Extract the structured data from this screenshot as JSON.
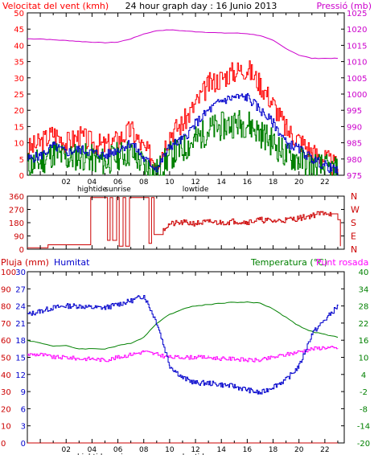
{
  "title": "24 hour graph day : 16 Junio 2013",
  "colors": {
    "background": "#ffffff",
    "frame": "#000000",
    "gust": "#ff0000",
    "wind_avg": "#0000cc",
    "wind_speed": "#008000",
    "pressure": "#cc00cc",
    "direction": "#cc0000",
    "rain": "#cc0000",
    "humidity": "#0000cc",
    "temperature": "#008000",
    "dew_point": "#ff00ff",
    "grid": "#bbbbbb"
  },
  "time_axis": {
    "hour_labels": [
      "02",
      "04",
      "06",
      "08",
      "10",
      "12",
      "14",
      "16",
      "18",
      "20",
      "22"
    ],
    "event_labels": [
      {
        "hour": 4,
        "text": "hightide"
      },
      {
        "hour": 6,
        "text": "sunrise"
      },
      {
        "hour": 12,
        "text": "lowtide"
      }
    ]
  },
  "chart_data": [
    {
      "type": "line",
      "name": "wind_pressure",
      "title": "Velocitat del vent (kmh)",
      "right_title": "Pressió (mb)",
      "ylim": [
        0,
        50
      ],
      "y_ticks": [
        "0",
        "5",
        "10",
        "15",
        "20",
        "25",
        "30",
        "35",
        "40",
        "45",
        "50"
      ],
      "y2lim": [
        975,
        1025
      ],
      "y2_ticks": [
        "975",
        "980",
        "985",
        "990",
        "995",
        "1000",
        "1005",
        "1010",
        "1015",
        "1020",
        "1025"
      ],
      "xlim": [
        -1,
        23.5
      ],
      "x_hours": [
        -1,
        0,
        1,
        2,
        3,
        4,
        5,
        6,
        7,
        8,
        9,
        10,
        11,
        12,
        13,
        14,
        15,
        16,
        17,
        18,
        19,
        20,
        21,
        22,
        23
      ],
      "series": [
        {
          "key": "gust",
          "values": [
            8,
            10,
            13,
            10,
            12,
            10,
            9,
            11,
            14,
            8,
            4,
            13,
            16,
            22,
            28,
            30,
            32,
            33,
            28,
            22,
            14,
            11,
            7,
            5,
            2
          ]
        },
        {
          "key": "wind_avg",
          "values": [
            5,
            6,
            9,
            7,
            8,
            7,
            6,
            8,
            10,
            5,
            2,
            9,
            11,
            16,
            20,
            23,
            24,
            24,
            20,
            16,
            10,
            8,
            5,
            3,
            1
          ]
        },
        {
          "key": "wind_speed",
          "values": [
            3,
            4,
            7,
            5,
            6,
            5,
            4,
            6,
            7,
            3,
            1,
            6,
            8,
            11,
            14,
            15,
            16,
            16,
            13,
            10,
            6,
            5,
            3,
            2,
            1
          ]
        },
        {
          "key": "pressure",
          "axis": "right",
          "values": [
            1017,
            1017,
            1016.7,
            1016.5,
            1016.2,
            1016,
            1015.8,
            1016,
            1017,
            1018.5,
            1019.5,
            1019.8,
            1019.5,
            1019.2,
            1019,
            1018.8,
            1018.8,
            1018.6,
            1018,
            1016.5,
            1014,
            1012,
            1011,
            1011,
            1011
          ]
        }
      ]
    },
    {
      "type": "line",
      "name": "wind_direction",
      "ylim": [
        0,
        360
      ],
      "y_ticks": [
        "0",
        "90",
        "180",
        "270",
        "360"
      ],
      "right_labels": [
        "N",
        "W",
        "S",
        "E",
        "N"
      ],
      "xlim": [
        -1,
        23.5
      ],
      "series": [
        {
          "key": "direction",
          "points": [
            [
              -1,
              10
            ],
            [
              0.5,
              10
            ],
            [
              0.6,
              30
            ],
            [
              3.8,
              30
            ],
            [
              3.9,
              350
            ],
            [
              5.1,
              350
            ],
            [
              5.2,
              60
            ],
            [
              5.4,
              350
            ],
            [
              5.6,
              60
            ],
            [
              5.9,
              350
            ],
            [
              6.1,
              20
            ],
            [
              6.4,
              350
            ],
            [
              6.6,
              20
            ],
            [
              6.9,
              350
            ],
            [
              8.3,
              350
            ],
            [
              8.4,
              40
            ],
            [
              8.6,
              350
            ],
            [
              8.8,
              100
            ],
            [
              9.5,
              140
            ],
            [
              10,
              170
            ],
            [
              11,
              180
            ],
            [
              12,
              175
            ],
            [
              13,
              185
            ],
            [
              14,
              180
            ],
            [
              15,
              190
            ],
            [
              16,
              185
            ],
            [
              17,
              200
            ],
            [
              18,
              190
            ],
            [
              19,
              200
            ],
            [
              20,
              210
            ],
            [
              21,
              230
            ],
            [
              22,
              250
            ],
            [
              22.5,
              240
            ],
            [
              23,
              200
            ],
            [
              23.2,
              20
            ]
          ]
        }
      ]
    },
    {
      "type": "line",
      "name": "rain_humidity_temperature",
      "title_left": "Pluja (mm)",
      "title_mid": "Humitat",
      "title_right": "Temperatura (°C)",
      "title_right2": "Punt rosada",
      "ylim": [
        0,
        100
      ],
      "y_ticks_rain": [
        "0",
        "3",
        "6",
        "9",
        "12",
        "15",
        "18",
        "21",
        "24",
        "27",
        "30"
      ],
      "y_ticks_hum": [
        "0",
        "10",
        "20",
        "30",
        "40",
        "50",
        "60",
        "70",
        "80",
        "90",
        "100"
      ],
      "y2lim": [
        -20,
        40
      ],
      "y2_ticks": [
        "-20",
        "-14",
        "-8",
        "-2",
        "4",
        "10",
        "16",
        "22",
        "28",
        "34",
        "40"
      ],
      "xlim": [
        -1,
        23.5
      ],
      "x_hours": [
        -1,
        0,
        1,
        2,
        3,
        4,
        5,
        6,
        7,
        8,
        9,
        10,
        11,
        12,
        13,
        14,
        15,
        16,
        17,
        18,
        19,
        20,
        21,
        22,
        23
      ],
      "series": [
        {
          "key": "rain",
          "values": [
            0,
            0,
            0,
            0,
            0,
            0,
            0,
            0,
            0,
            0,
            0,
            0,
            0,
            0,
            0,
            0,
            0,
            0,
            0,
            0,
            0,
            0,
            0,
            0,
            0
          ]
        },
        {
          "key": "humidity",
          "values": [
            75,
            77,
            79,
            80,
            80,
            79,
            79,
            81,
            83,
            86,
            70,
            45,
            38,
            35,
            35,
            34,
            33,
            31,
            29,
            33,
            37,
            45,
            64,
            72,
            80
          ]
        },
        {
          "key": "temperature",
          "axis": "right",
          "values": [
            16,
            15,
            14,
            14,
            13,
            13,
            13,
            14,
            15,
            17,
            22,
            25,
            27,
            28,
            28.5,
            29,
            29.3,
            29.3,
            29,
            27,
            24,
            21,
            19,
            18,
            17
          ]
        },
        {
          "key": "dew_point",
          "axis": "right",
          "values": [
            11,
            11,
            10,
            10,
            9.5,
            9.5,
            9,
            10,
            11,
            12,
            11,
            10,
            10,
            10,
            10,
            9.5,
            9.5,
            9,
            9,
            10,
            11,
            12,
            13,
            13.5,
            13
          ]
        }
      ]
    }
  ]
}
